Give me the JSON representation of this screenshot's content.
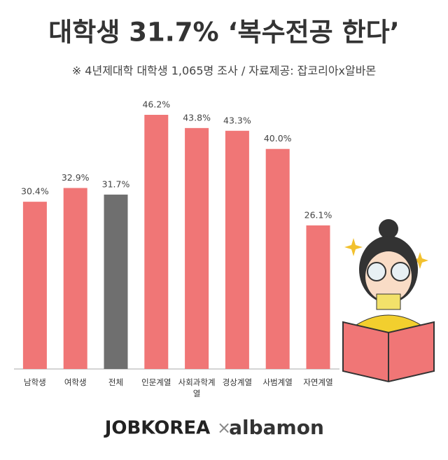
{
  "chart_data": {
    "type": "bar",
    "title": "대학생 31.7% ‘복수전공 한다’",
    "subtitle": "※ 4년제대학 대학생 1,065명 조사 / 자료제공: 잡코리아x알바몬",
    "categories": [
      "남학생",
      "여학생",
      "전체",
      "인문계열",
      "사회과학계열",
      "경상계열",
      "사범계열",
      "자연계열"
    ],
    "values": [
      30.4,
      32.9,
      31.7,
      46.2,
      43.8,
      43.3,
      40.0,
      26.1
    ],
    "value_labels": [
      "30.4%",
      "32.9%",
      "31.7%",
      "46.2%",
      "43.8%",
      "43.3%",
      "40.0%",
      "26.1%"
    ],
    "colors": [
      "#f07676",
      "#f07676",
      "#6f6f6f",
      "#f07676",
      "#f07676",
      "#f07676",
      "#f07676",
      "#f07676"
    ]
  },
  "footer": {
    "brand1": "JOBKOREA",
    "separator": "×",
    "brand2": "albamon"
  }
}
